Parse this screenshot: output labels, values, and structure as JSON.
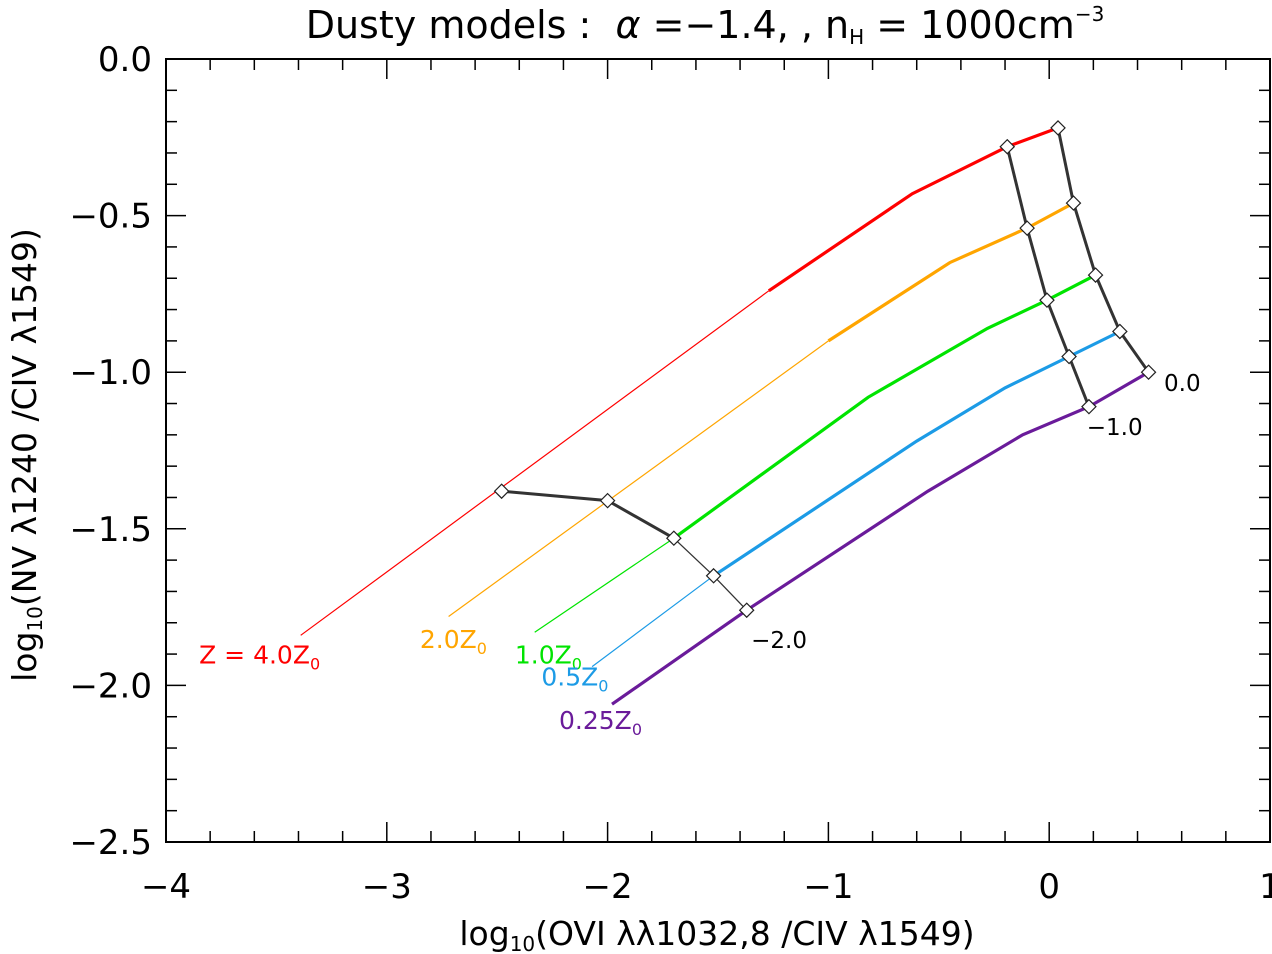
{
  "chart_data": {
    "type": "line",
    "title": {
      "prefix": "Dusty models :  ",
      "alpha_symbol": "α",
      "alpha_value": " =−1.4,  ,  n",
      "n_sub": "H",
      "density": " =  1000cm",
      "density_sup": "−3"
    },
    "xlabel": {
      "pre": "log",
      "sub": "10",
      "post": "(OVI λλ1032,8 /CIV λ1549)"
    },
    "ylabel": {
      "pre": "log",
      "sub": "10",
      "post": "(NV λ1240 /CIV λ1549)"
    },
    "xlim": [
      -4,
      1
    ],
    "ylim": [
      -2.5,
      0.0
    ],
    "xticks": [
      {
        "value": -4,
        "label": "−4"
      },
      {
        "value": -3,
        "label": "−3"
      },
      {
        "value": -2,
        "label": "−2"
      },
      {
        "value": -1,
        "label": "−1"
      },
      {
        "value": 0,
        "label": "0"
      },
      {
        "value": 1,
        "label": "1"
      }
    ],
    "yticks": [
      {
        "value": 0.0,
        "label": "0.0"
      },
      {
        "value": -0.5,
        "label": "−0.5"
      },
      {
        "value": -1.0,
        "label": "−1.0"
      },
      {
        "value": -1.5,
        "label": "−1.5"
      },
      {
        "value": -2.0,
        "label": "−2.0"
      },
      {
        "value": -2.5,
        "label": "−2.5"
      }
    ],
    "x_minor_step": 0.2,
    "y_minor_step": 0.1,
    "series": [
      {
        "name": "Z = 4.0Z",
        "label_main": "Z = 4.0Z",
        "label_sub": "0",
        "color": "#ff0000",
        "label_x": -3.85,
        "label_y": -1.93,
        "thin": [
          [
            -3.39,
            -1.84
          ],
          [
            -1.27,
            -0.74
          ]
        ],
        "points": [
          [
            -3.39,
            -1.84
          ],
          [
            -2.48,
            -1.38
          ],
          [
            -1.27,
            -0.74
          ],
          [
            -0.62,
            -0.43
          ],
          [
            -0.19,
            -0.28
          ],
          [
            0.04,
            -0.22
          ]
        ]
      },
      {
        "name": "2.0Z",
        "label_main": "2.0Z",
        "label_sub": "0",
        "color": "#ffa500",
        "label_x": -2.85,
        "label_y": -1.88,
        "thin": [
          [
            -2.72,
            -1.78
          ],
          [
            -1.0,
            -0.9
          ]
        ],
        "points": [
          [
            -2.72,
            -1.78
          ],
          [
            -1.0,
            -0.9
          ],
          [
            -0.45,
            -0.65
          ],
          [
            -0.1,
            -0.54
          ],
          [
            0.11,
            -0.46
          ]
        ]
      },
      {
        "name": "1.0Z",
        "label_main": "1.0Z",
        "label_sub": "0",
        "color": "#00e400",
        "label_x": -2.42,
        "label_y": -1.93,
        "thin": [
          [
            -2.33,
            -1.83
          ],
          [
            -1.7,
            -1.53
          ]
        ],
        "points": [
          [
            -2.33,
            -1.83
          ],
          [
            -1.7,
            -1.53
          ],
          [
            -0.82,
            -1.08
          ],
          [
            -0.28,
            -0.86
          ],
          [
            -0.01,
            -0.77
          ],
          [
            0.21,
            -0.69
          ]
        ]
      },
      {
        "name": "0.5Z",
        "label_main": "0.5Z",
        "label_sub": "0",
        "color": "#1c9be6",
        "label_x": -2.3,
        "label_y": -2.0,
        "thin": [
          [
            -2.07,
            -1.94
          ],
          [
            -1.52,
            -1.65
          ]
        ],
        "points": [
          [
            -2.07,
            -1.94
          ],
          [
            -1.52,
            -1.65
          ],
          [
            -0.6,
            -1.22
          ],
          [
            -0.2,
            -1.05
          ],
          [
            0.09,
            -0.95
          ],
          [
            0.32,
            -0.87
          ]
        ]
      },
      {
        "name": "0.25Z",
        "label_main": "0.25Z",
        "label_sub": "0",
        "color": "#6a1b9a",
        "label_x": -2.22,
        "label_y": -2.14,
        "thin": [],
        "points": [
          [
            -1.98,
            -2.06
          ],
          [
            -1.37,
            -1.76
          ],
          [
            -0.55,
            -1.38
          ],
          [
            -0.12,
            -1.2
          ],
          [
            0.18,
            -1.11
          ],
          [
            0.45,
            -1.0
          ]
        ]
      }
    ],
    "grid_lines": [
      {
        "label": "−2.0",
        "label_x": -1.35,
        "label_y": -1.88,
        "thick_to": 2,
        "points": [
          [
            -2.48,
            -1.38
          ],
          [
            -2.0,
            -1.41
          ],
          [
            -1.7,
            -1.53
          ],
          [
            -1.52,
            -1.65
          ],
          [
            -1.37,
            -1.76
          ]
        ]
      },
      {
        "label": "−1.0",
        "label_x": 0.17,
        "label_y": -1.2,
        "thick_to": 4,
        "points": [
          [
            -0.19,
            -0.28
          ],
          [
            -0.1,
            -0.54
          ],
          [
            -0.01,
            -0.77
          ],
          [
            0.09,
            -0.95
          ],
          [
            0.18,
            -1.11
          ]
        ]
      },
      {
        "label": "0.0",
        "label_x": 0.52,
        "label_y": -1.06,
        "thick_to": 4,
        "points": [
          [
            0.04,
            -0.22
          ],
          [
            0.11,
            -0.46
          ],
          [
            0.21,
            -0.69
          ],
          [
            0.32,
            -0.87
          ],
          [
            0.45,
            -1.0
          ]
        ]
      }
    ],
    "markers": [
      [
        -2.48,
        -1.38
      ],
      [
        -2.0,
        -1.41
      ],
      [
        -1.7,
        -1.53
      ],
      [
        -1.52,
        -1.65
      ],
      [
        -1.37,
        -1.76
      ],
      [
        -0.19,
        -0.28
      ],
      [
        -0.1,
        -0.54
      ],
      [
        -0.01,
        -0.77
      ],
      [
        0.09,
        -0.95
      ],
      [
        0.18,
        -1.11
      ],
      [
        0.04,
        -0.22
      ],
      [
        0.11,
        -0.46
      ],
      [
        0.21,
        -0.69
      ],
      [
        0.32,
        -0.87
      ],
      [
        0.45,
        -1.0
      ]
    ],
    "colors": {
      "axis": "#000000",
      "grid_line": "#333333",
      "marker_fill": "#ffffff"
    }
  }
}
